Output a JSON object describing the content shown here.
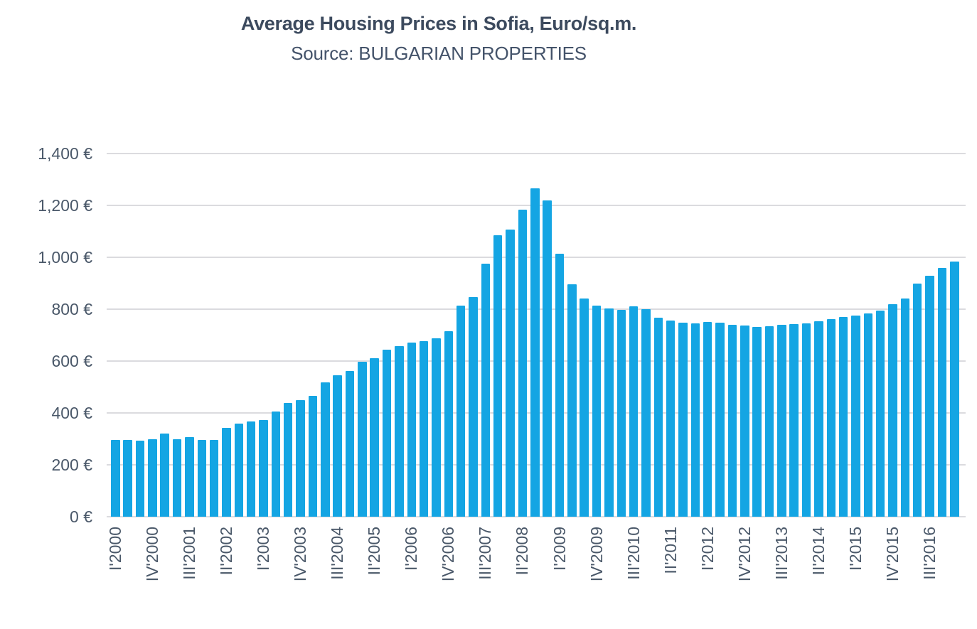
{
  "page": {
    "background": "#ffffff"
  },
  "header": {
    "title": "Average Housing Prices in Sofia, Euro/sq.m.",
    "subtitle": "Source: BULGARIAN PROPERTIES"
  },
  "chart_data": {
    "type": "bar",
    "title": "Average Housing Prices in Sofia, Euro/sq.m.",
    "subtitle": "Source: BULGARIAN PROPERTIES",
    "ylabel": "",
    "xlabel": "",
    "ylim": [
      0,
      1400
    ],
    "y_gridline_step": 200,
    "grid": "horizontal",
    "legend_position": "none",
    "y_tick_labels": [
      "0 €",
      "200 €",
      "400 €",
      "600 €",
      "800 €",
      "1,000 €",
      "1,200 €",
      "1,400 €"
    ],
    "x_tick_every": 3,
    "x": [
      "I'2000",
      "II'2000",
      "III'2000",
      "IV'2000",
      "I'2001",
      "II'2001",
      "III'2001",
      "IV'2001",
      "I'2002",
      "II'2002",
      "III'2002",
      "IV'2002",
      "I'2003",
      "II'2003",
      "III'2003",
      "IV'2003",
      "I'2004",
      "II'2004",
      "III'2004",
      "IV'2004",
      "I'2005",
      "II'2005",
      "III'2005",
      "IV'2005",
      "I'2006",
      "II'2006",
      "III'2006",
      "IV'2006",
      "I'2007",
      "II'2007",
      "III'2007",
      "IV'2007",
      "I'2008",
      "II'2008",
      "III'2008",
      "IV'2008",
      "I'2009",
      "II'2009",
      "III'2009",
      "IV'2009",
      "I'2010",
      "II'2010",
      "III'2010",
      "IV'2010",
      "I'2011",
      "II'2011",
      "III'2011",
      "IV'2011",
      "I'2012",
      "II'2012",
      "III'2012",
      "IV'2012",
      "I'2013",
      "II'2013",
      "III'2013",
      "IV'2013",
      "I'2014",
      "II'2014",
      "III'2014",
      "IV'2014",
      "I'2015",
      "II'2015",
      "III'2015",
      "IV'2015",
      "I'2016",
      "II'2016",
      "III'2016",
      "IV'2016",
      "I'2017"
    ],
    "values": [
      295,
      295,
      292,
      298,
      322,
      298,
      307,
      295,
      297,
      342,
      360,
      368,
      373,
      405,
      438,
      450,
      465,
      518,
      545,
      563,
      597,
      611,
      645,
      659,
      672,
      678,
      689,
      714,
      815,
      848,
      975,
      1085,
      1108,
      1185,
      1266,
      1218,
      1015,
      896,
      842,
      815,
      802,
      797,
      812,
      800,
      768,
      755,
      748,
      744,
      750,
      747,
      741,
      738,
      731,
      735,
      739,
      743,
      745,
      753,
      763,
      771,
      776,
      783,
      796,
      818,
      840,
      900,
      930,
      960,
      985
    ],
    "bar_color": "#14a5e3",
    "grid_color": "#dbdbdf",
    "title_color": "#3c4a5e",
    "axis_label_color": "#4a5869"
  }
}
